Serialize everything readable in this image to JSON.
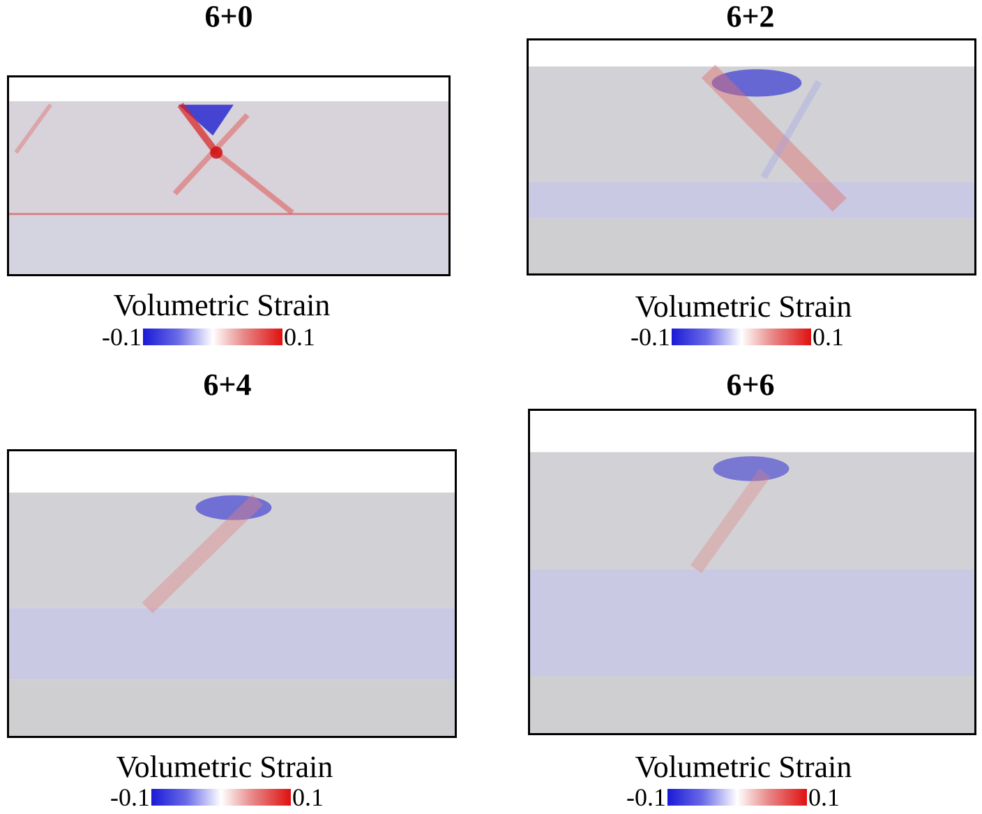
{
  "figure": {
    "panels": [
      {
        "title": "6+0",
        "colorbar_label": "Volumetric Strain",
        "colorbar_min": "-0.1",
        "colorbar_max": "0.1"
      },
      {
        "title": "6+2",
        "colorbar_label": "Volumetric Strain",
        "colorbar_min": "-0.1",
        "colorbar_max": "0.1"
      },
      {
        "title": "6+4",
        "colorbar_label": "Volumetric Strain",
        "colorbar_min": "-0.1",
        "colorbar_max": "0.1"
      },
      {
        "title": "6+6",
        "colorbar_label": "Volumetric Strain",
        "colorbar_min": "-0.1",
        "colorbar_max": "0.1"
      }
    ],
    "colormap": {
      "negative": "#1a1ad6",
      "neutral": "#ffffff",
      "positive": "#e01010",
      "particle_gray": "#c8c8c8"
    }
  }
}
